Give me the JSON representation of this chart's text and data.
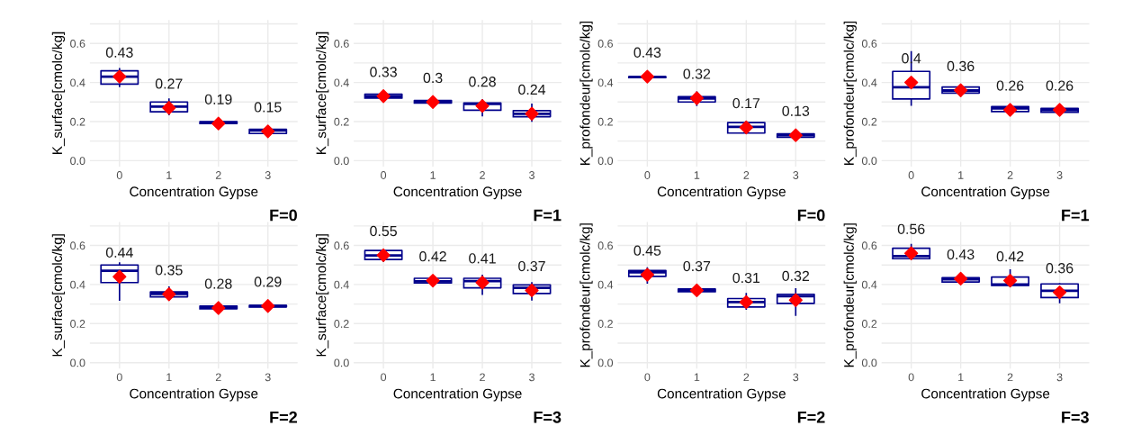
{
  "chart_data": [
    {
      "type": "box",
      "categories": [
        "0",
        "1",
        "2",
        "3"
      ],
      "xlabel": "Concentration Gypse",
      "ylabel": "K_surface[cmolc/kg]",
      "annotations": [
        "F=0"
      ],
      "ylim": [
        -0.03,
        0.72
      ],
      "yticks": [
        {
          "value": 0,
          "label": "0.0"
        },
        {
          "value": 0.1,
          "label": null
        },
        {
          "value": 0.2,
          "label": "0.2"
        },
        {
          "value": 0.3,
          "label": null
        },
        {
          "value": 0.4,
          "label": "0.4"
        },
        {
          "value": 0.5,
          "label": null
        },
        {
          "value": 0.6,
          "label": "0.6"
        },
        {
          "value": 0.7,
          "label": null
        }
      ],
      "grid": true,
      "data_labels": true,
      "series": [
        {
          "type": "box",
          "color": "#00008b",
          "boxes": [
            {
              "low": 0.38,
              "q1": 0.392,
              "median": 0.43,
              "q3": 0.46,
              "high": 0.47
            },
            {
              "low": 0.236,
              "q1": 0.25,
              "median": 0.277,
              "q3": 0.3,
              "high": 0.315
            },
            {
              "low": 0.183,
              "q1": 0.19,
              "median": 0.195,
              "q3": 0.2,
              "high": 0.215
            },
            {
              "low": 0.138,
              "q1": 0.139,
              "median": 0.155,
              "q3": 0.16,
              "high": 0.16
            }
          ]
        },
        {
          "type": "scatter",
          "x": [
            "0",
            "1",
            "2",
            "3"
          ],
          "values": [
            0.43,
            0.27,
            0.19,
            0.15
          ],
          "color": "#ff0000",
          "marker": "diamond"
        }
      ]
    },
    {
      "type": "box",
      "categories": [
        "0",
        "1",
        "2",
        "3"
      ],
      "xlabel": "Concentration Gypse",
      "ylabel": "K_surface[cmolc/kg]",
      "annotations": [
        "F=1"
      ],
      "ylim": [
        -0.03,
        0.72
      ],
      "yticks": [
        {
          "value": 0,
          "label": "0.0"
        },
        {
          "value": 0.1,
          "label": null
        },
        {
          "value": 0.2,
          "label": "0.2"
        },
        {
          "value": 0.3,
          "label": null
        },
        {
          "value": 0.4,
          "label": "0.4"
        },
        {
          "value": 0.5,
          "label": null
        },
        {
          "value": 0.6,
          "label": "0.6"
        },
        {
          "value": 0.7,
          "label": null
        }
      ],
      "grid": true,
      "data_labels": true,
      "series": [
        {
          "type": "box",
          "color": "#00008b",
          "boxes": [
            {
              "low": 0.31,
              "q1": 0.32,
              "median": 0.33,
              "q3": 0.34,
              "high": 0.345
            },
            {
              "low": 0.295,
              "q1": 0.295,
              "median": 0.302,
              "q3": 0.308,
              "high": 0.31
            },
            {
              "low": 0.23,
              "q1": 0.258,
              "median": 0.29,
              "q3": 0.295,
              "high": 0.31
            },
            {
              "low": 0.203,
              "q1": 0.225,
              "median": 0.24,
              "q3": 0.256,
              "high": 0.288
            }
          ]
        },
        {
          "type": "scatter",
          "x": [
            "0",
            "1",
            "2",
            "3"
          ],
          "values": [
            0.33,
            0.3,
            0.28,
            0.24
          ],
          "color": "#ff0000",
          "marker": "diamond"
        }
      ]
    },
    {
      "type": "box",
      "categories": [
        "0",
        "1",
        "2",
        "3"
      ],
      "xlabel": "Concentration Gypse",
      "ylabel": "K_profondeur[cmolc/kg]",
      "annotations": [
        "F=0"
      ],
      "ylim": [
        -0.03,
        0.72
      ],
      "yticks": [
        {
          "value": 0,
          "label": "0.0"
        },
        {
          "value": 0.1,
          "label": null
        },
        {
          "value": 0.2,
          "label": "0.2"
        },
        {
          "value": 0.3,
          "label": null
        },
        {
          "value": 0.4,
          "label": "0.4"
        },
        {
          "value": 0.5,
          "label": null
        },
        {
          "value": 0.6,
          "label": "0.6"
        },
        {
          "value": 0.7,
          "label": null
        }
      ],
      "grid": true,
      "data_labels": true,
      "series": [
        {
          "type": "box",
          "color": "#00008b",
          "boxes": [
            {
              "low": 0.425,
              "q1": 0.425,
              "median": 0.428,
              "q3": 0.43,
              "high": 0.43
            },
            {
              "low": 0.283,
              "q1": 0.3,
              "median": 0.318,
              "q3": 0.327,
              "high": 0.35
            },
            {
              "low": 0.141,
              "q1": 0.141,
              "median": 0.173,
              "q3": 0.195,
              "high": 0.2
            },
            {
              "low": 0.12,
              "q1": 0.12,
              "median": 0.13,
              "q3": 0.137,
              "high": 0.138
            }
          ]
        },
        {
          "type": "scatter",
          "x": [
            "0",
            "1",
            "2",
            "3"
          ],
          "values": [
            0.43,
            0.32,
            0.17,
            0.13
          ],
          "color": "#ff0000",
          "marker": "diamond"
        }
      ]
    },
    {
      "type": "box",
      "categories": [
        "0",
        "1",
        "2",
        "3"
      ],
      "xlabel": "Concentration Gypse",
      "ylabel": "K_profondeur[cmolc/kg]",
      "annotations": [
        "F=1"
      ],
      "ylim": [
        -0.03,
        0.72
      ],
      "yticks": [
        {
          "value": 0,
          "label": "0.0"
        },
        {
          "value": 0.1,
          "label": null
        },
        {
          "value": 0.2,
          "label": "0.2"
        },
        {
          "value": 0.3,
          "label": null
        },
        {
          "value": 0.4,
          "label": "0.4"
        },
        {
          "value": 0.5,
          "label": null
        },
        {
          "value": 0.6,
          "label": "0.6"
        },
        {
          "value": 0.7,
          "label": null
        }
      ],
      "grid": true,
      "data_labels": true,
      "series": [
        {
          "type": "box",
          "color": "#00008b",
          "boxes": [
            {
              "low": 0.284,
              "q1": 0.316,
              "median": 0.376,
              "q3": 0.457,
              "high": 0.557
            },
            {
              "low": 0.332,
              "q1": 0.346,
              "median": 0.359,
              "q3": 0.377,
              "high": 0.383
            },
            {
              "low": 0.234,
              "q1": 0.251,
              "median": 0.267,
              "q3": 0.277,
              "high": 0.284
            },
            {
              "low": 0.247,
              "q1": 0.247,
              "median": 0.258,
              "q3": 0.268,
              "high": 0.268
            }
          ]
        },
        {
          "type": "scatter",
          "x": [
            "0",
            "1",
            "2",
            "3"
          ],
          "values": [
            0.4,
            0.36,
            0.26,
            0.26
          ],
          "color": "#ff0000",
          "marker": "diamond"
        }
      ]
    },
    {
      "type": "box",
      "categories": [
        "0",
        "1",
        "2",
        "3"
      ],
      "xlabel": "Concentration Gypse",
      "ylabel": "K_surface[cmolc/kg]",
      "annotations": [
        "F=2"
      ],
      "ylim": [
        -0.03,
        0.72
      ],
      "yticks": [
        {
          "value": 0,
          "label": "0.0"
        },
        {
          "value": 0.1,
          "label": null
        },
        {
          "value": 0.2,
          "label": "0.2"
        },
        {
          "value": 0.3,
          "label": null
        },
        {
          "value": 0.4,
          "label": "0.4"
        },
        {
          "value": 0.5,
          "label": null
        },
        {
          "value": 0.6,
          "label": "0.6"
        },
        {
          "value": 0.7,
          "label": null
        }
      ],
      "grid": true,
      "data_labels": true,
      "series": [
        {
          "type": "box",
          "color": "#00008b",
          "boxes": [
            {
              "low": 0.32,
              "q1": 0.41,
              "median": 0.47,
              "q3": 0.5,
              "high": 0.51
            },
            {
              "low": 0.323,
              "q1": 0.337,
              "median": 0.352,
              "q3": 0.362,
              "high": 0.386
            },
            {
              "low": 0.276,
              "q1": 0.276,
              "median": 0.286,
              "q3": 0.29,
              "high": 0.29
            },
            {
              "low": 0.285,
              "q1": 0.285,
              "median": 0.29,
              "q3": 0.293,
              "high": 0.293
            }
          ]
        },
        {
          "type": "scatter",
          "x": [
            "0",
            "1",
            "2",
            "3"
          ],
          "values": [
            0.44,
            0.35,
            0.28,
            0.29
          ],
          "color": "#ff0000",
          "marker": "diamond"
        }
      ]
    },
    {
      "type": "box",
      "categories": [
        "0",
        "1",
        "2",
        "3"
      ],
      "xlabel": "Concentration Gypse",
      "ylabel": "K_surface[cmolc/kg]",
      "annotations": [
        "F=3"
      ],
      "ylim": [
        -0.03,
        0.72
      ],
      "yticks": [
        {
          "value": 0,
          "label": "0.0"
        },
        {
          "value": 0.1,
          "label": null
        },
        {
          "value": 0.2,
          "label": "0.2"
        },
        {
          "value": 0.3,
          "label": null
        },
        {
          "value": 0.4,
          "label": "0.4"
        },
        {
          "value": 0.5,
          "label": null
        },
        {
          "value": 0.6,
          "label": "0.6"
        },
        {
          "value": 0.7,
          "label": null
        }
      ],
      "grid": true,
      "data_labels": true,
      "series": [
        {
          "type": "box",
          "color": "#00008b",
          "boxes": [
            {
              "low": 0.52,
              "q1": 0.528,
              "median": 0.549,
              "q3": 0.574,
              "high": 0.574
            },
            {
              "low": 0.408,
              "q1": 0.408,
              "median": 0.416,
              "q3": 0.432,
              "high": 0.432
            },
            {
              "low": 0.35,
              "q1": 0.383,
              "median": 0.417,
              "q3": 0.432,
              "high": 0.446
            },
            {
              "low": 0.322,
              "q1": 0.354,
              "median": 0.383,
              "q3": 0.398,
              "high": 0.408
            }
          ]
        },
        {
          "type": "scatter",
          "x": [
            "0",
            "1",
            "2",
            "3"
          ],
          "values": [
            0.55,
            0.42,
            0.41,
            0.37
          ],
          "color": "#ff0000",
          "marker": "diamond"
        }
      ]
    },
    {
      "type": "box",
      "categories": [
        "0",
        "1",
        "2",
        "3"
      ],
      "xlabel": "Concentration Gypse",
      "ylabel": "K_profondeur[cmolc/kg]",
      "annotations": [
        "F=2"
      ],
      "ylim": [
        -0.03,
        0.72
      ],
      "yticks": [
        {
          "value": 0,
          "label": "0.0"
        },
        {
          "value": 0.1,
          "label": null
        },
        {
          "value": 0.2,
          "label": "0.2"
        },
        {
          "value": 0.3,
          "label": null
        },
        {
          "value": 0.4,
          "label": "0.4"
        },
        {
          "value": 0.5,
          "label": null
        },
        {
          "value": 0.6,
          "label": "0.6"
        },
        {
          "value": 0.7,
          "label": null
        }
      ],
      "grid": true,
      "data_labels": true,
      "series": [
        {
          "type": "box",
          "color": "#00008b",
          "boxes": [
            {
              "low": 0.408,
              "q1": 0.442,
              "median": 0.462,
              "q3": 0.472,
              "high": 0.484
            },
            {
              "low": 0.363,
              "q1": 0.363,
              "median": 0.37,
              "q3": 0.377,
              "high": 0.377
            },
            {
              "low": 0.274,
              "q1": 0.285,
              "median": 0.31,
              "q3": 0.328,
              "high": 0.353
            },
            {
              "low": 0.243,
              "q1": 0.303,
              "median": 0.34,
              "q3": 0.35,
              "high": 0.377
            }
          ]
        },
        {
          "type": "scatter",
          "x": [
            "0",
            "1",
            "2",
            "3"
          ],
          "values": [
            0.45,
            0.37,
            0.31,
            0.32
          ],
          "color": "#ff0000",
          "marker": "diamond"
        }
      ]
    },
    {
      "type": "box",
      "categories": [
        "0",
        "1",
        "2",
        "3"
      ],
      "xlabel": "Concentration Gypse",
      "ylabel": "K_profondeur[cmolc/kg]",
      "annotations": [
        "F=3"
      ],
      "ylim": [
        -0.03,
        0.72
      ],
      "yticks": [
        {
          "value": 0,
          "label": "0.0"
        },
        {
          "value": 0.1,
          "label": null
        },
        {
          "value": 0.2,
          "label": "0.2"
        },
        {
          "value": 0.3,
          "label": null
        },
        {
          "value": 0.4,
          "label": "0.4"
        },
        {
          "value": 0.5,
          "label": null
        },
        {
          "value": 0.6,
          "label": "0.6"
        },
        {
          "value": 0.7,
          "label": null
        }
      ],
      "grid": true,
      "data_labels": true,
      "series": [
        {
          "type": "box",
          "color": "#00008b",
          "boxes": [
            {
              "low": 0.53,
              "q1": 0.532,
              "median": 0.545,
              "q3": 0.586,
              "high": 0.604
            },
            {
              "low": 0.413,
              "q1": 0.413,
              "median": 0.427,
              "q3": 0.435,
              "high": 0.435
            },
            {
              "low": 0.39,
              "q1": 0.395,
              "median": 0.4,
              "q3": 0.438,
              "high": 0.474
            },
            {
              "low": 0.308,
              "q1": 0.333,
              "median": 0.368,
              "q3": 0.403,
              "high": 0.403
            }
          ]
        },
        {
          "type": "scatter",
          "x": [
            "0",
            "1",
            "2",
            "3"
          ],
          "values": [
            0.56,
            0.43,
            0.42,
            0.36
          ],
          "color": "#ff0000",
          "marker": "diamond"
        }
      ]
    }
  ]
}
